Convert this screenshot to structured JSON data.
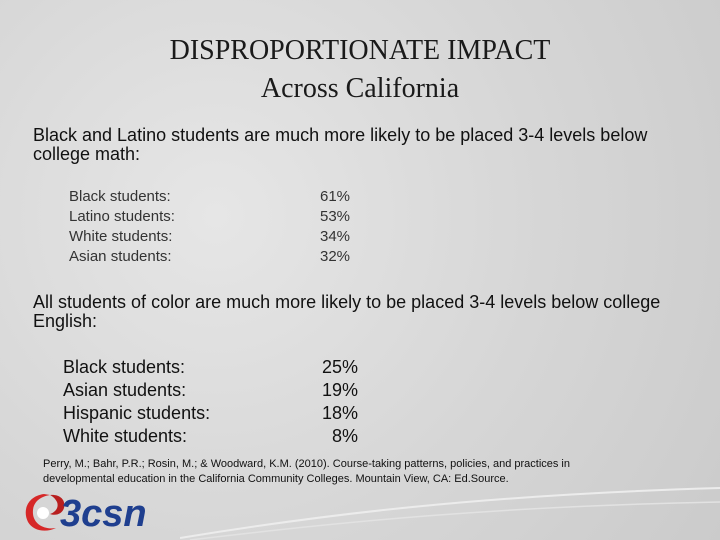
{
  "slide": {
    "title_line1": "DISPROPORTIONATE IMPACT",
    "title_line2": "Across California"
  },
  "math": {
    "intro": "Black and Latino students are much more likely to be placed 3-4 levels below college math:",
    "rows": [
      {
        "label": "Black students:",
        "value": "61%"
      },
      {
        "label": "Latino students:",
        "value": "53%"
      },
      {
        "label": "White students:",
        "value": "34%"
      },
      {
        "label": "Asian students:",
        "value": "32%"
      }
    ]
  },
  "english": {
    "intro": "All students of color are much more likely to be placed 3-4 levels below college English:",
    "rows": [
      {
        "label": "Black students:",
        "value": "25%"
      },
      {
        "label": "Asian students:",
        "value": "19%"
      },
      {
        "label": "Hispanic students:",
        "value": "18%"
      },
      {
        "label": "White students:",
        "value": "8%"
      }
    ]
  },
  "citation": "Perry, M.; Bahr, P.R.; Rosin, M.; & Woodward, K.M. (2010). Course-taking patterns, policies, and practices in developmental education in the California Community Colleges. Mountain View, CA: Ed.Source.",
  "logo": {
    "text": "3csn",
    "icon": "3csn-swirl-logo-icon",
    "colors": {
      "red": "#d62828",
      "blue": "#1f3f8f"
    }
  }
}
